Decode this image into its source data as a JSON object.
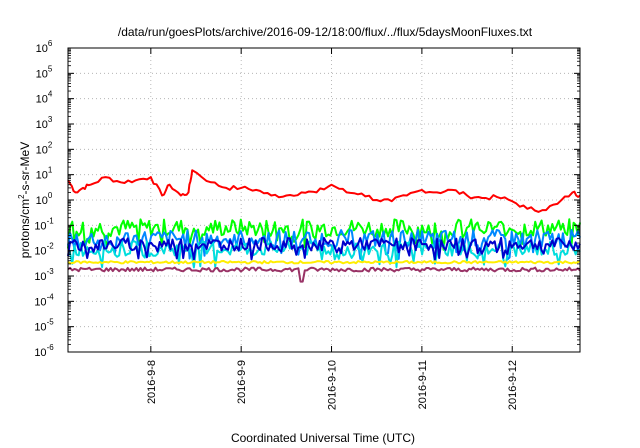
{
  "chart_data": {
    "type": "line",
    "title": "/data/run/goesPlots/archive/2016-09-12/18:00/flux/../flux/5daysMoonFluxes.txt",
    "xlabel": "Coordinated Universal Time (UTC)",
    "ylabel": "protons/cm²-s-sr-MeV",
    "ylabel_parts": {
      "pre": "protons/cm",
      "sup": "2",
      "post": "-s-sr-MeV"
    },
    "yscale": "log",
    "ylim": [
      1e-06,
      1000000.0
    ],
    "xlim": [
      "2016-09-07 02:00",
      "2016-09-12 18:00"
    ],
    "x_ticks": [
      "2016-9-8",
      "2016-9-9",
      "2016-9-10",
      "2016-9-11",
      "2016-9-12"
    ],
    "y_ticks": [
      {
        "base": "10",
        "exp": "-6"
      },
      {
        "base": "10",
        "exp": "-5"
      },
      {
        "base": "10",
        "exp": "-4"
      },
      {
        "base": "10",
        "exp": "-3"
      },
      {
        "base": "10",
        "exp": "-2"
      },
      {
        "base": "10",
        "exp": "-1"
      },
      {
        "base": "10",
        "exp": "0"
      },
      {
        "base": "10",
        "exp": "1"
      },
      {
        "base": "10",
        "exp": "2"
      },
      {
        "base": "10",
        "exp": "3"
      },
      {
        "base": "10",
        "exp": "4"
      },
      {
        "base": "10",
        "exp": "5"
      },
      {
        "base": "10",
        "exp": "6"
      }
    ],
    "grid": true,
    "series": [
      {
        "color": "#ff0000",
        "x": [
          "2016-09-07 02:00",
          "2016-09-07 04:00",
          "2016-09-07 06:00",
          "2016-09-07 08:00",
          "2016-09-07 12:00",
          "2016-09-07 16:00",
          "2016-09-07 20:00",
          "2016-09-08 00:00",
          "2016-09-08 03:00",
          "2016-09-08 05:00",
          "2016-09-08 08:00",
          "2016-09-08 10:00",
          "2016-09-08 11:00",
          "2016-09-08 16:00",
          "2016-09-08 20:00",
          "2016-09-09 00:00",
          "2016-09-09 04:00",
          "2016-09-09 08:00",
          "2016-09-09 12:00",
          "2016-09-09 16:00",
          "2016-09-09 20:00",
          "2016-09-10 00:00",
          "2016-09-10 04:00",
          "2016-09-10 08:00",
          "2016-09-10 12:00",
          "2016-09-10 16:00",
          "2016-09-10 20:00",
          "2016-09-11 00:00",
          "2016-09-11 04:00",
          "2016-09-11 08:00",
          "2016-09-11 12:00",
          "2016-09-11 16:00",
          "2016-09-11 20:00",
          "2016-09-12 00:00",
          "2016-09-12 04:00",
          "2016-09-12 08:00",
          "2016-09-12 12:00",
          "2016-09-12 16:00",
          "2016-09-12 18:00"
        ],
        "y": [
          6,
          2,
          3,
          4,
          8,
          5,
          6,
          8,
          1.5,
          4,
          1.5,
          2,
          15,
          5,
          3,
          3,
          2.5,
          1.5,
          1.5,
          2,
          2,
          4,
          2,
          1.8,
          1,
          0.9,
          1.5,
          2.5,
          2,
          2.5,
          1.5,
          1.2,
          1.3,
          0.9,
          0.45,
          0.4,
          0.7,
          2,
          1.5
        ]
      },
      {
        "color": "#00ff00",
        "level": 0.08,
        "spread": 0.35
      },
      {
        "color": "#0088ff",
        "level": 0.03,
        "spread": 0.35
      },
      {
        "color": "#00dddd",
        "level": 0.012,
        "spread": 0.3
      },
      {
        "color": "#0000cc",
        "level": 0.018,
        "spread": 0.25
      },
      {
        "color": "#ffee00",
        "level": 0.0035,
        "spread": 0.05
      },
      {
        "color": "#993366",
        "level": 0.0018,
        "spread": 0.08,
        "dip": [
          "2016-09-09 16:00",
          0.0006
        ]
      }
    ]
  }
}
